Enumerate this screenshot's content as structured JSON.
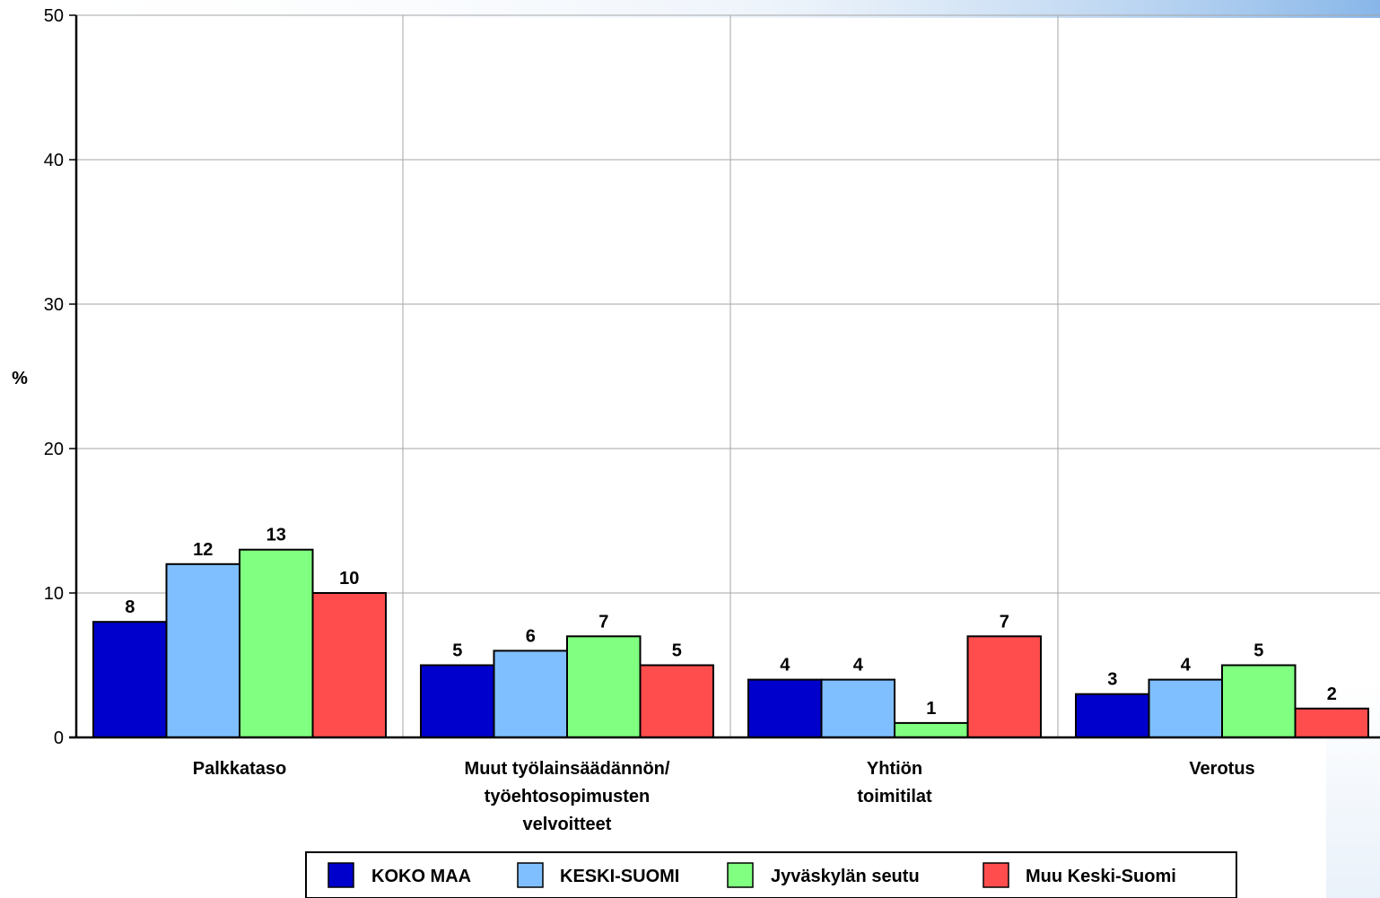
{
  "chart_data": {
    "type": "bar",
    "title": "",
    "xlabel": "",
    "ylabel": "%",
    "ylim": [
      0,
      50
    ],
    "yticks": [
      "0",
      "10",
      "20",
      "30",
      "40",
      "50"
    ],
    "grid": true,
    "legend_position": "bottom",
    "categories": [
      [
        "Palkkataso"
      ],
      [
        "Muut työlainsäädännön/",
        "työehtosopimusten",
        "velvoitteet"
      ],
      [
        "Yhtiön",
        "toimitilat"
      ],
      [
        "Verotus"
      ]
    ],
    "series": [
      {
        "name": "KOKO MAA",
        "color": "#0000cc",
        "values": [
          8,
          5,
          4,
          3
        ]
      },
      {
        "name": "KESKI-SUOMI",
        "color": "#80bfff",
        "values": [
          12,
          6,
          4,
          4
        ]
      },
      {
        "name": "Jyväskylän seutu",
        "color": "#80ff80",
        "values": [
          13,
          7,
          1,
          5
        ]
      },
      {
        "name": "Muu Keski-Suomi",
        "color": "#ff4d4d",
        "values": [
          10,
          5,
          7,
          2
        ]
      }
    ]
  }
}
